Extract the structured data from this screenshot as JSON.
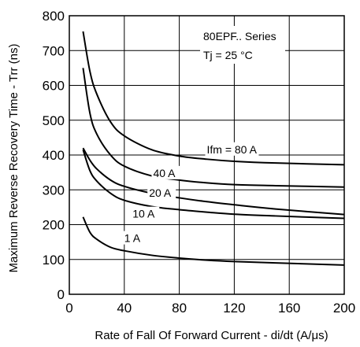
{
  "chart_data": {
    "type": "line",
    "xlabel": "Rate of Fall Of Forward Current - di/dt (A/μs)",
    "ylabel": "Maximum Reverse Recovery Time - Trr (ns)",
    "xlim": [
      0,
      200
    ],
    "ylim": [
      0,
      800
    ],
    "xticks": [
      0,
      40,
      80,
      120,
      160,
      200
    ],
    "yticks": [
      0,
      100,
      200,
      300,
      400,
      500,
      600,
      700,
      800
    ],
    "grid": true,
    "annotations": {
      "series_title": "80EPF.. Series",
      "temperature": "Tj = 25 °C"
    },
    "series": [
      {
        "name": "Ifm = 80 A",
        "x": [
          10,
          15,
          20,
          30,
          40,
          60,
          80,
          100,
          120,
          150,
          200
        ],
        "y": [
          755,
          640,
          575,
          495,
          455,
          415,
          397,
          388,
          382,
          377,
          372
        ]
      },
      {
        "name": "40 A",
        "x": [
          10,
          15,
          20,
          30,
          40,
          60,
          80,
          100,
          120,
          150,
          200
        ],
        "y": [
          650,
          520,
          460,
          400,
          368,
          340,
          328,
          320,
          315,
          312,
          308
        ]
      },
      {
        "name": "20 A",
        "x": [
          10,
          15,
          20,
          30,
          40,
          60,
          80,
          100,
          120,
          150,
          200
        ],
        "y": [
          420,
          385,
          360,
          328,
          310,
          290,
          277,
          266,
          257,
          245,
          229
        ]
      },
      {
        "name": "10 A",
        "x": [
          10,
          15,
          20,
          30,
          40,
          60,
          80,
          100,
          120,
          150,
          200
        ],
        "y": [
          415,
          355,
          325,
          290,
          270,
          252,
          243,
          236,
          230,
          225,
          218
        ]
      },
      {
        "name": "1 A",
        "x": [
          10,
          15,
          20,
          30,
          40,
          60,
          80,
          100,
          120,
          150,
          200
        ],
        "y": [
          222,
          178,
          158,
          135,
          125,
          112,
          104,
          98,
          94,
          90,
          84
        ]
      }
    ]
  }
}
